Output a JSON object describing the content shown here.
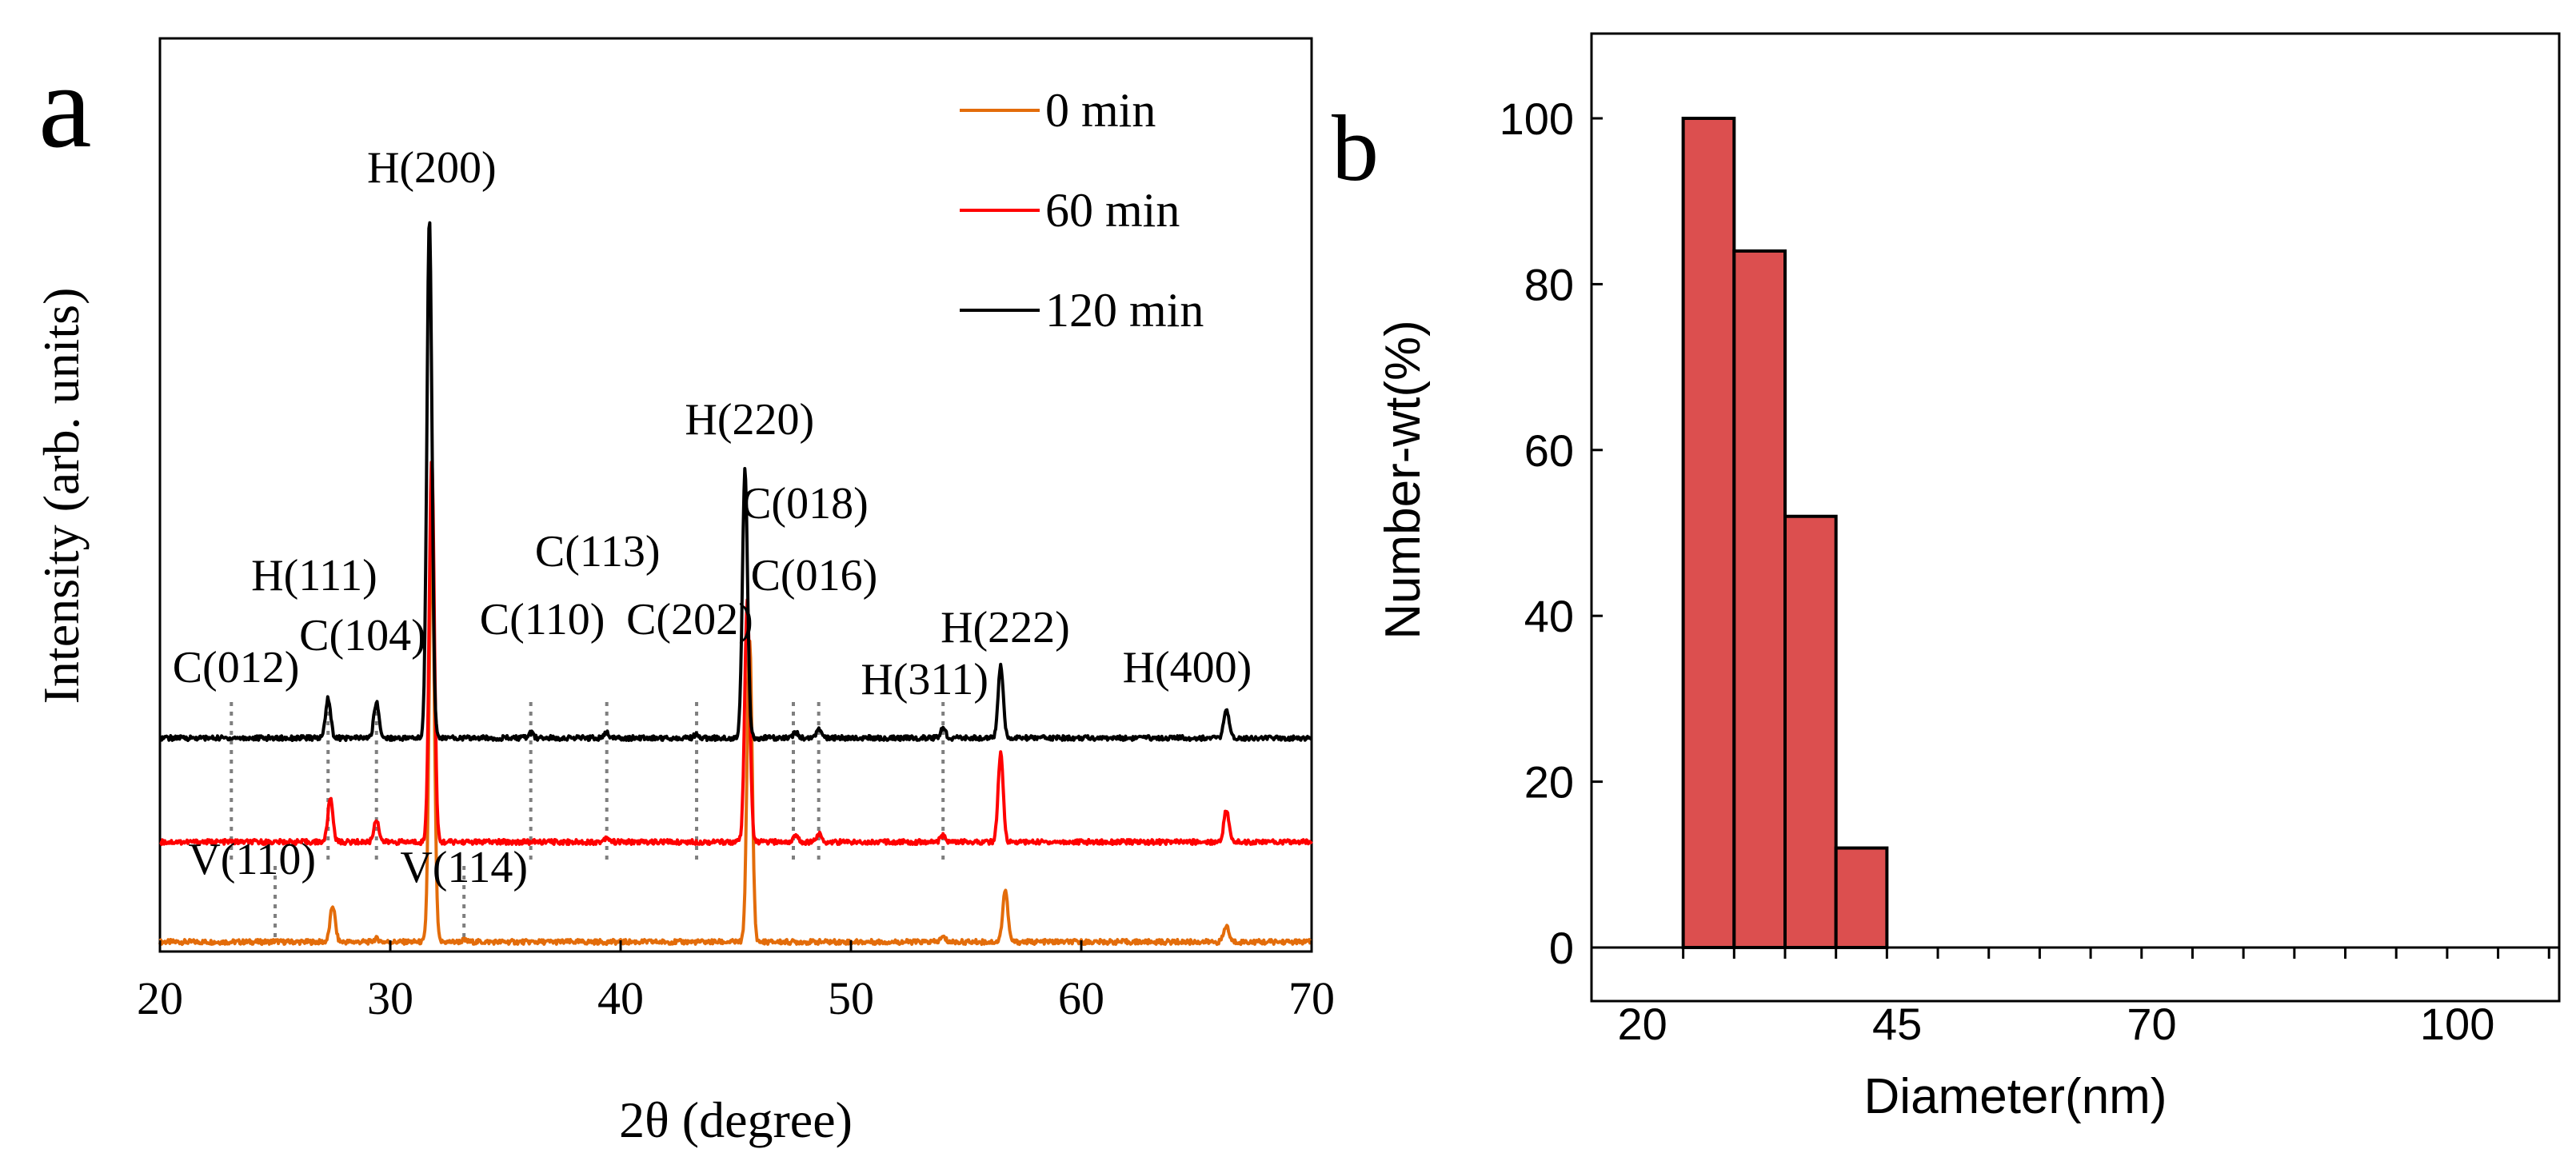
{
  "panel_labels": {
    "a": "a",
    "b": "b"
  },
  "chart_data": [
    {
      "type": "line",
      "panel": "a",
      "title": "",
      "xlabel": "2θ (degree)",
      "ylabel": "Intensity (arb. units)",
      "xlim": [
        20,
        70
      ],
      "xticks": [
        20,
        30,
        40,
        50,
        60,
        70
      ],
      "grid": false,
      "legend_position": "top-right",
      "series": [
        {
          "name": "0 min",
          "color": "#e36c0a",
          "baseline": 0.0,
          "peaks": [
            [
              25.0,
              0.01
            ],
            [
              27.5,
              0.45
            ],
            [
              29.4,
              0.04
            ],
            [
              31.8,
              5.2
            ],
            [
              33.2,
              0.02
            ],
            [
              45.6,
              3.8
            ],
            [
              54.0,
              0.06
            ],
            [
              56.7,
              0.65
            ],
            [
              66.3,
              0.2
            ]
          ]
        },
        {
          "name": "60 min",
          "color": "#ff0000",
          "baseline": 1.25,
          "peaks": [
            [
              27.4,
              0.55
            ],
            [
              29.4,
              0.28
            ],
            [
              31.8,
              4.8
            ],
            [
              39.4,
              0.06
            ],
            [
              45.5,
              3.0
            ],
            [
              47.6,
              0.07
            ],
            [
              48.6,
              0.1
            ],
            [
              54.0,
              0.08
            ],
            [
              56.5,
              1.1
            ],
            [
              66.3,
              0.4
            ]
          ]
        },
        {
          "name": "120 min",
          "color": "#000000",
          "baseline": 2.55,
          "peaks": [
            [
              27.3,
              0.5
            ],
            [
              29.4,
              0.45
            ],
            [
              31.7,
              6.5
            ],
            [
              36.1,
              0.06
            ],
            [
              39.4,
              0.06
            ],
            [
              43.3,
              0.04
            ],
            [
              45.4,
              3.35
            ],
            [
              47.6,
              0.07
            ],
            [
              48.6,
              0.1
            ],
            [
              54.0,
              0.12
            ],
            [
              56.5,
              0.9
            ],
            [
              66.3,
              0.35
            ]
          ]
        }
      ],
      "reference_lines": [
        23.1,
        27.3,
        29.4,
        36.1,
        39.4,
        43.3,
        47.5,
        48.6,
        54.0,
        25.0,
        33.2
      ],
      "annotations": [
        {
          "text": "H(200)",
          "x": 31.8,
          "y": 9.5
        },
        {
          "text": "H(220)",
          "x": 45.6,
          "y": 6.35
        },
        {
          "text": "C(018)",
          "x": 48.0,
          "y": 5.3
        },
        {
          "text": "C(113)",
          "x": 39.0,
          "y": 4.7
        },
        {
          "text": "H(111)",
          "x": 26.7,
          "y": 4.4
        },
        {
          "text": "C(016)",
          "x": 48.4,
          "y": 4.4
        },
        {
          "text": "C(110)",
          "x": 36.6,
          "y": 3.85
        },
        {
          "text": "C(202)",
          "x": 43.0,
          "y": 3.85
        },
        {
          "text": "C(104)",
          "x": 28.8,
          "y": 3.65
        },
        {
          "text": "H(222)",
          "x": 56.7,
          "y": 3.75
        },
        {
          "text": "C(012)",
          "x": 23.3,
          "y": 3.25
        },
        {
          "text": "H(311)",
          "x": 53.2,
          "y": 3.1
        },
        {
          "text": "H(400)",
          "x": 64.6,
          "y": 3.25
        },
        {
          "text": "V(110)",
          "x": 24.0,
          "y": 0.85
        },
        {
          "text": "V(114)",
          "x": 33.2,
          "y": 0.75
        }
      ]
    },
    {
      "type": "bar",
      "panel": "b",
      "title": "",
      "xlabel": "Diameter(nm)",
      "ylabel": "Number-wt(%)",
      "xlim": [
        15,
        110
      ],
      "ylim": [
        0,
        110
      ],
      "xticks": [
        20,
        45,
        70,
        100
      ],
      "yticks": [
        0,
        20,
        40,
        60,
        80,
        100
      ],
      "grid": false,
      "bar_color": "#dc4f4f",
      "bins": [
        [
          24,
          29
        ],
        [
          29,
          34
        ],
        [
          34,
          39
        ],
        [
          39,
          44
        ],
        [
          44,
          49
        ],
        [
          49,
          54
        ],
        [
          54,
          59
        ],
        [
          59,
          64
        ],
        [
          64,
          69
        ],
        [
          69,
          74
        ],
        [
          74,
          79
        ],
        [
          79,
          84
        ],
        [
          84,
          89
        ],
        [
          89,
          94
        ],
        [
          94,
          99
        ],
        [
          99,
          104
        ],
        [
          104,
          109
        ]
      ],
      "values": [
        100,
        84,
        52,
        12,
        0,
        0,
        0,
        0,
        0,
        0,
        0,
        0,
        0,
        0,
        0,
        0,
        0
      ]
    }
  ]
}
